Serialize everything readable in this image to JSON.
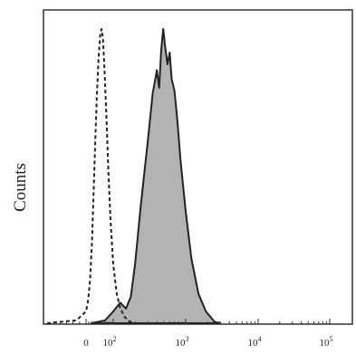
{
  "chart_data": {
    "type": "area",
    "title": "",
    "xlabel": "",
    "ylabel": "Counts",
    "x_scale": "biexponential",
    "xlim": [
      -60,
      200000
    ],
    "ylim": [
      0,
      1
    ],
    "grid": false,
    "legend": "none",
    "x_ticks": [
      {
        "value": 0,
        "label": "0"
      },
      {
        "value": 100,
        "label": "10",
        "exp": "2"
      },
      {
        "value": 1000,
        "label": "10",
        "exp": "3"
      },
      {
        "value": 10000,
        "label": "10",
        "exp": "4"
      },
      {
        "value": 100000,
        "label": "10",
        "exp": "5"
      }
    ],
    "series": [
      {
        "style": "dashed-outline",
        "color": "#222222",
        "points": [
          [
            -60,
            0
          ],
          [
            -15,
            0.01
          ],
          [
            0,
            0.04
          ],
          [
            8,
            0.08
          ],
          [
            15,
            0.15
          ],
          [
            22,
            0.28
          ],
          [
            28,
            0.45
          ],
          [
            34,
            0.62
          ],
          [
            40,
            0.78
          ],
          [
            46,
            0.9
          ],
          [
            52,
            0.98
          ],
          [
            57,
            1.0
          ],
          [
            62,
            0.97
          ],
          [
            68,
            0.86
          ],
          [
            75,
            0.7
          ],
          [
            82,
            0.52
          ],
          [
            90,
            0.35
          ],
          [
            100,
            0.2
          ],
          [
            112,
            0.1
          ],
          [
            125,
            0.05
          ],
          [
            145,
            0.02
          ],
          [
            170,
            0.005
          ],
          [
            200,
            0
          ]
        ]
      },
      {
        "style": "filled",
        "color": "#b3b3b3",
        "points": [
          [
            20,
            0
          ],
          [
            70,
            0.01
          ],
          [
            100,
            0.04
          ],
          [
            125,
            0.07
          ],
          [
            150,
            0.05
          ],
          [
            175,
            0.09
          ],
          [
            200,
            0.2
          ],
          [
            240,
            0.4
          ],
          [
            300,
            0.62
          ],
          [
            350,
            0.78
          ],
          [
            400,
            0.86
          ],
          [
            430,
            0.8
          ],
          [
            460,
            0.93
          ],
          [
            490,
            1.0
          ],
          [
            520,
            0.94
          ],
          [
            560,
            0.88
          ],
          [
            600,
            0.92
          ],
          [
            640,
            0.83
          ],
          [
            700,
            0.79
          ],
          [
            760,
            0.7
          ],
          [
            850,
            0.55
          ],
          [
            1000,
            0.38
          ],
          [
            1200,
            0.22
          ],
          [
            1500,
            0.1
          ],
          [
            1900,
            0.04
          ],
          [
            2500,
            0.005
          ],
          [
            3000,
            0
          ]
        ]
      }
    ]
  }
}
